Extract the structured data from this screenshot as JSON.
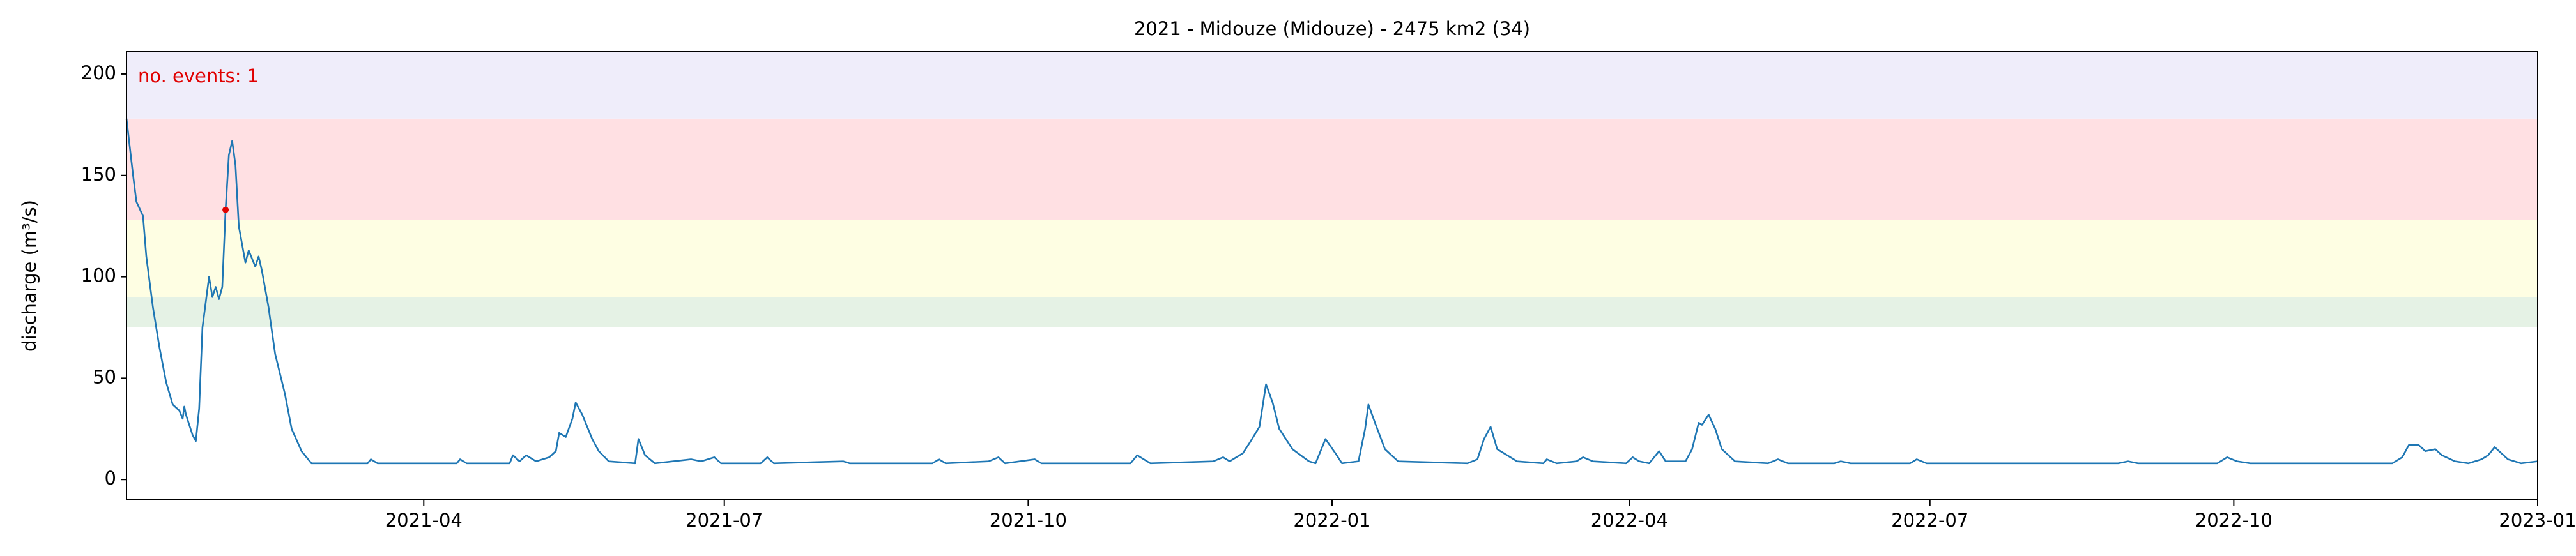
{
  "chart_data": {
    "type": "line",
    "title": "2021 - Midouze (Midouze) - 2475 km2 (34)",
    "y_label": "discharge (m³/s)",
    "annotation": "no. events: 1",
    "annotation_color": "#e00000",
    "xlim": [
      0,
      730
    ],
    "xticks": [
      {
        "value": 90,
        "label": "2021-04"
      },
      {
        "value": 181,
        "label": "2021-07"
      },
      {
        "value": 273,
        "label": "2021-10"
      },
      {
        "value": 365,
        "label": "2022-01"
      },
      {
        "value": 455,
        "label": "2022-04"
      },
      {
        "value": 546,
        "label": "2022-07"
      },
      {
        "value": 638,
        "label": "2022-10"
      },
      {
        "value": 730,
        "label": "2023-01"
      }
    ],
    "ylim": [
      -10,
      211
    ],
    "yticks": [
      0,
      50,
      100,
      150,
      200
    ],
    "thresholds": [
      75,
      90,
      128,
      178
    ],
    "threshold_colors": [
      "#e5f2e5",
      "#fefee3",
      "#ffe0e3",
      "#efedfa"
    ],
    "series": [
      {
        "name": "discharge",
        "color": "#1f77b4",
        "x": [
          0,
          2,
          3,
          5,
          6,
          8,
          10,
          12,
          14,
          16,
          17,
          17.5,
          18,
          20,
          21,
          22,
          23,
          25,
          26,
          27,
          28,
          29,
          30,
          31,
          32,
          33,
          34,
          36,
          37,
          39,
          40,
          41,
          43,
          45,
          48,
          50,
          53,
          56,
          73,
          74,
          76,
          100,
          101,
          103,
          116,
          117,
          119,
          121,
          124,
          128,
          130,
          131,
          133,
          135,
          136,
          138,
          141,
          143,
          146,
          154,
          155,
          157,
          160,
          171,
          174,
          178,
          180,
          192,
          194,
          196,
          217,
          219,
          244,
          246,
          248,
          261,
          264,
          266,
          275,
          277,
          304,
          306,
          310,
          329,
          332,
          334,
          338,
          340,
          343,
          345,
          347,
          349,
          353,
          358,
          360,
          361,
          363,
          366,
          368,
          373,
          375,
          376,
          378,
          381,
          385,
          406,
          409,
          411,
          413,
          415,
          418,
          421,
          429,
          430,
          433,
          439,
          441,
          444,
          454,
          456,
          458,
          461,
          464,
          466,
          472,
          474,
          476,
          477,
          479,
          481,
          483,
          487,
          497,
          500,
          503,
          517,
          519,
          522,
          540,
          542,
          545,
          603,
          606,
          609,
          633,
          636,
          639,
          643,
          686,
          689,
          691,
          694,
          696,
          699,
          701,
          705,
          709,
          713,
          715,
          717,
          719,
          721,
          725,
          730
        ],
        "values": [
          178,
          150,
          137,
          130,
          110,
          85,
          65,
          48,
          37,
          34,
          30,
          36,
          32,
          22,
          19,
          35,
          75,
          100,
          90,
          95,
          89,
          95,
          133,
          160,
          167,
          155,
          125,
          107,
          113,
          105,
          110,
          103,
          85,
          62,
          42,
          25,
          14,
          8,
          8,
          10,
          8,
          8,
          10,
          8,
          8,
          12,
          9,
          12,
          9,
          11,
          14,
          23,
          21,
          30,
          38,
          32,
          20,
          14,
          9,
          8,
          20,
          12,
          8,
          10,
          9,
          11,
          8,
          8,
          11,
          8,
          9,
          8,
          8,
          10,
          8,
          9,
          11,
          8,
          10,
          8,
          8,
          12,
          8,
          9,
          11,
          9,
          13,
          18,
          26,
          47,
          38,
          25,
          15,
          9,
          8,
          12,
          20,
          13,
          8,
          9,
          25,
          37,
          28,
          15,
          9,
          8,
          10,
          20,
          26,
          15,
          12,
          9,
          8,
          10,
          8,
          9,
          11,
          9,
          8,
          11,
          9,
          8,
          14,
          9,
          9,
          15,
          28,
          27,
          32,
          25,
          15,
          9,
          8,
          10,
          8,
          8,
          9,
          8,
          8,
          10,
          8,
          8,
          9,
          8,
          8,
          11,
          9,
          8,
          8,
          11,
          17,
          17,
          14,
          15,
          12,
          9,
          8,
          10,
          12,
          16,
          13,
          10,
          8,
          9
        ]
      }
    ],
    "events": {
      "color": "#e00000",
      "x": [
        30
      ],
      "values": [
        133
      ]
    }
  }
}
